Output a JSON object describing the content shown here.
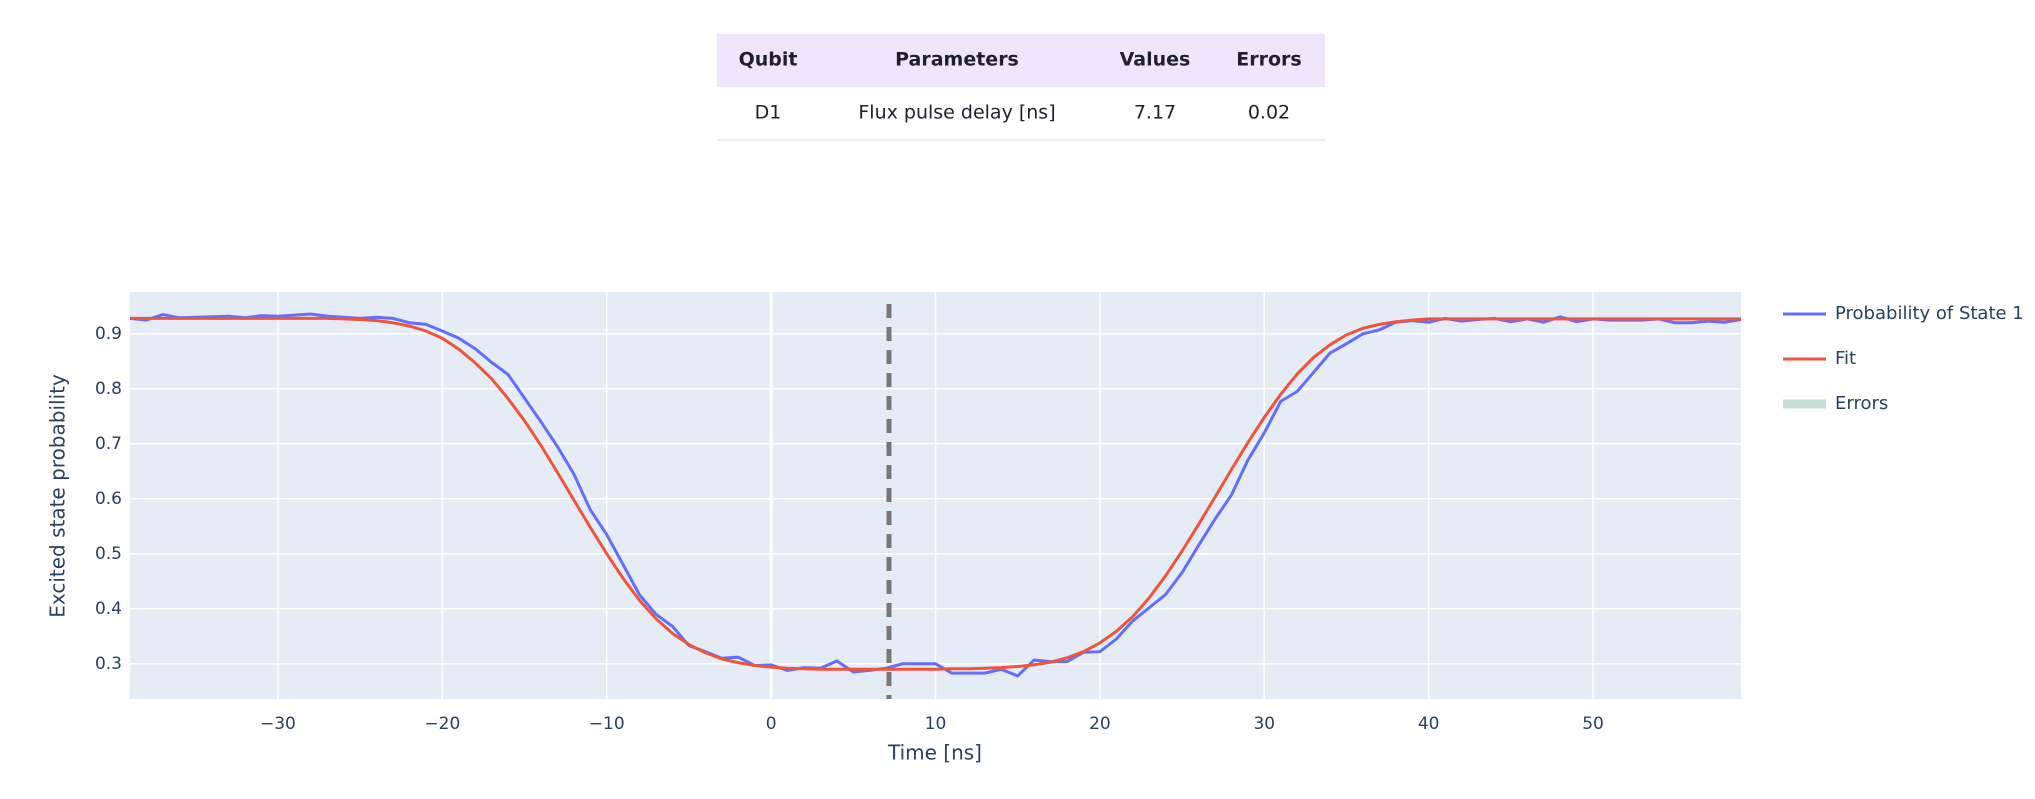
{
  "table": {
    "header": [
      "Qubit",
      "Parameters",
      "Values",
      "Errors"
    ],
    "rows": [
      [
        "D1",
        "Flux pulse delay [ns]",
        "7.17",
        "0.02"
      ]
    ]
  },
  "chart_data": {
    "type": "line",
    "xlabel": "Time [ns]",
    "ylabel": "Excited state probability",
    "x": [
      -39,
      -38,
      -37,
      -36,
      -35,
      -34,
      -33,
      -32,
      -31,
      -30,
      -29,
      -28,
      -27,
      -26,
      -25,
      -24,
      -23,
      -22,
      -21,
      -20,
      -19,
      -18,
      -17,
      -16,
      -15,
      -14,
      -13,
      -12,
      -11,
      -10,
      -9,
      -8,
      -7,
      -6,
      -5,
      -4,
      -3,
      -2,
      -1,
      0,
      1,
      2,
      3,
      4,
      5,
      6,
      7,
      8,
      9,
      10,
      11,
      12,
      13,
      14,
      15,
      16,
      17,
      18,
      19,
      20,
      21,
      22,
      23,
      24,
      25,
      26,
      27,
      28,
      29,
      30,
      31,
      32,
      33,
      34,
      35,
      36,
      37,
      38,
      39,
      40,
      41,
      42,
      43,
      44,
      45,
      46,
      47,
      48,
      49,
      50,
      51,
      52,
      53,
      54,
      55,
      56,
      57,
      58,
      59
    ],
    "series": [
      {
        "name": "Probability of State 1",
        "color": "#636efa",
        "values": [
          0.928,
          0.925,
          0.935,
          0.929,
          0.93,
          0.931,
          0.932,
          0.929,
          0.933,
          0.932,
          0.934,
          0.936,
          0.932,
          0.93,
          0.928,
          0.93,
          0.928,
          0.92,
          0.917,
          0.905,
          0.892,
          0.873,
          0.848,
          0.826,
          0.783,
          0.74,
          0.695,
          0.645,
          0.58,
          0.535,
          0.48,
          0.425,
          0.39,
          0.368,
          0.333,
          0.322,
          0.31,
          0.312,
          0.297,
          0.298,
          0.288,
          0.293,
          0.292,
          0.305,
          0.285,
          0.288,
          0.292,
          0.3,
          0.3,
          0.3,
          0.283,
          0.283,
          0.283,
          0.29,
          0.278,
          0.307,
          0.304,
          0.304,
          0.321,
          0.322,
          0.345,
          0.378,
          0.402,
          0.426,
          0.466,
          0.515,
          0.563,
          0.607,
          0.67,
          0.72,
          0.777,
          0.795,
          0.83,
          0.865,
          0.882,
          0.9,
          0.907,
          0.921,
          0.924,
          0.921,
          0.928,
          0.923,
          0.926,
          0.928,
          0.922,
          0.927,
          0.921,
          0.931,
          0.922,
          0.927,
          0.925,
          0.925,
          0.925,
          0.927,
          0.92,
          0.92,
          0.923,
          0.921,
          0.926
        ]
      },
      {
        "name": "Fit",
        "color": "#ef553b",
        "values": [
          0.928,
          0.928,
          0.928,
          0.928,
          0.928,
          0.928,
          0.928,
          0.928,
          0.928,
          0.928,
          0.928,
          0.928,
          0.928,
          0.927,
          0.926,
          0.924,
          0.92,
          0.914,
          0.905,
          0.892,
          0.872,
          0.847,
          0.818,
          0.782,
          0.742,
          0.697,
          0.648,
          0.598,
          0.548,
          0.5,
          0.455,
          0.415,
          0.382,
          0.355,
          0.335,
          0.32,
          0.309,
          0.302,
          0.297,
          0.294,
          0.292,
          0.291,
          0.29,
          0.29,
          0.29,
          0.29,
          0.29,
          0.29,
          0.29,
          0.29,
          0.291,
          0.291,
          0.292,
          0.293,
          0.295,
          0.298,
          0.303,
          0.311,
          0.322,
          0.338,
          0.359,
          0.386,
          0.42,
          0.46,
          0.505,
          0.553,
          0.603,
          0.653,
          0.702,
          0.748,
          0.79,
          0.827,
          0.857,
          0.88,
          0.898,
          0.91,
          0.917,
          0.922,
          0.925,
          0.927,
          0.927,
          0.927,
          0.927,
          0.927,
          0.927,
          0.927,
          0.927,
          0.927,
          0.927,
          0.927,
          0.927,
          0.927,
          0.927,
          0.927,
          0.927,
          0.927,
          0.927,
          0.927,
          0.927
        ]
      },
      {
        "name": "Errors",
        "color": "#c5ded6"
      }
    ],
    "xlim": [
      -39,
      59
    ],
    "ylim": [
      0.236,
      0.976
    ],
    "xticks": [
      {
        "value": -30,
        "label": "−30"
      },
      {
        "value": -20,
        "label": "−20"
      },
      {
        "value": -10,
        "label": "−10"
      },
      0,
      10,
      20,
      30,
      40,
      50
    ],
    "yticks": [
      0.3,
      0.4,
      0.5,
      0.6,
      0.7,
      0.8,
      0.9
    ],
    "grid": true
  }
}
